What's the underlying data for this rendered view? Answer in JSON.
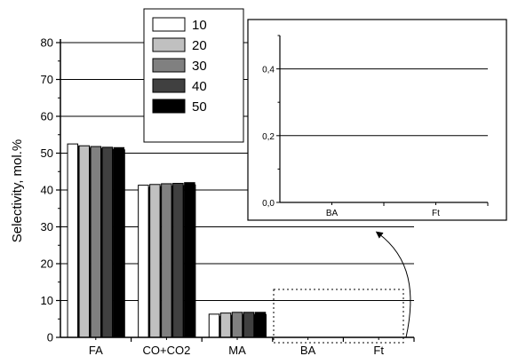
{
  "chart_data": [
    {
      "type": "bar",
      "ylabel": "Selectivity, mol.%",
      "ylim": [
        0,
        80
      ],
      "yticks": [
        0,
        10,
        20,
        30,
        40,
        50,
        60,
        70,
        80
      ],
      "categories": [
        "FA",
        "CO+CO2",
        "MA",
        "BA",
        "Ft"
      ],
      "legend": {
        "placement": "top-left-inside"
      },
      "grid": "horizontal",
      "series": [
        {
          "name": "10",
          "color": "#ffffff",
          "values": [
            52.5,
            41.3,
            6.3,
            0,
            0
          ]
        },
        {
          "name": "20",
          "color": "#c0c0c0",
          "values": [
            52.0,
            41.5,
            6.6,
            0,
            0
          ]
        },
        {
          "name": "30",
          "color": "#808080",
          "values": [
            51.8,
            41.7,
            6.8,
            0,
            0
          ]
        },
        {
          "name": "40",
          "color": "#404040",
          "values": [
            51.6,
            41.8,
            6.8,
            0,
            0
          ]
        },
        {
          "name": "50",
          "color": "#000000",
          "values": [
            51.5,
            42.0,
            6.8,
            0,
            0
          ]
        }
      ]
    },
    {
      "type": "bar",
      "inset": true,
      "ylim": [
        0,
        0.5
      ],
      "yticks": [
        "0,0",
        "0,2",
        "0,4"
      ],
      "categories": [
        "BA",
        "Ft"
      ],
      "grid": "horizontal",
      "series": [
        {
          "name": "10",
          "values": [
            0,
            0
          ]
        },
        {
          "name": "20",
          "values": [
            0,
            0
          ]
        },
        {
          "name": "30",
          "values": [
            0,
            0
          ]
        },
        {
          "name": "40",
          "values": [
            0,
            0
          ]
        },
        {
          "name": "50",
          "values": [
            0,
            0
          ]
        }
      ]
    }
  ]
}
